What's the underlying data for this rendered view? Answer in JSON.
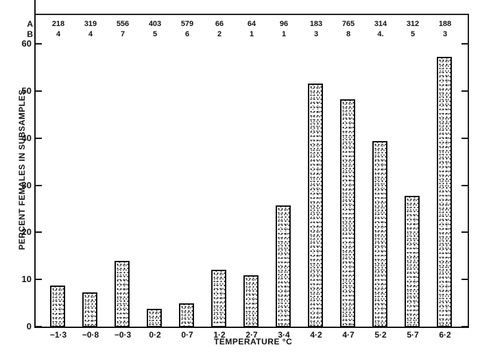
{
  "chart_data": {
    "type": "bar",
    "title": "",
    "xlabel": "TEMPERATURE °C",
    "ylabel": "PERCENT FEMALES IN SUBSAMPLES",
    "ylim": [
      0,
      60
    ],
    "yticks": [
      "0",
      "10",
      "20",
      "30",
      "40",
      "50",
      "60"
    ],
    "categories": [
      "-1·3",
      "-0·8",
      "-0·3",
      "0·2",
      "0·7",
      "1·2",
      "2·7",
      "3·4",
      "4·2",
      "4·7",
      "5·2",
      "5·7",
      "6·2"
    ],
    "values": [
      8.7,
      7.3,
      14.0,
      3.8,
      4.9,
      12.0,
      10.9,
      25.7,
      51.6,
      48.3,
      39.4,
      27.8,
      57.3
    ],
    "grid": false,
    "annotations": {
      "row_A_label": "A",
      "row_B_label": "B",
      "A": [
        "218",
        "319",
        "556",
        "403",
        "579",
        "66",
        "64",
        "96",
        "183",
        "765",
        "314",
        "312",
        "188"
      ],
      "B": [
        "4",
        "4",
        "7",
        "5",
        "6",
        "2",
        "1",
        "1",
        "3",
        "8",
        "4.",
        "5",
        "3"
      ]
    }
  }
}
